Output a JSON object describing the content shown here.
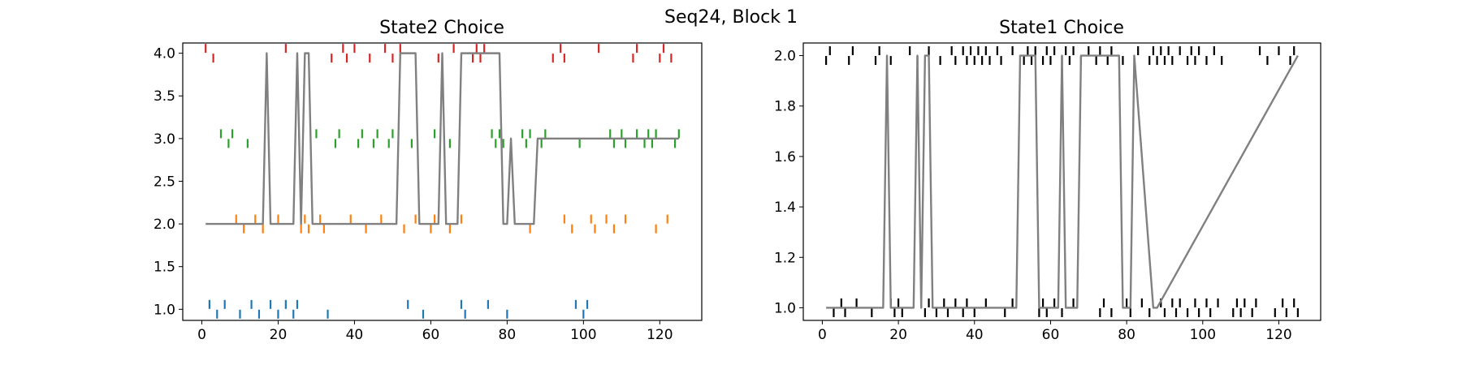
{
  "suptitle": "Seq24, Block 1",
  "chart_data": [
    {
      "type": "line",
      "title": "State2 Choice",
      "xlabel": "",
      "ylabel": "",
      "xlim": [
        -5,
        131
      ],
      "ylim": [
        0.87,
        4.12
      ],
      "xticks": [
        0,
        20,
        40,
        60,
        80,
        100,
        120
      ],
      "yticks": [
        1.0,
        1.5,
        2.0,
        2.5,
        3.0,
        3.5,
        4.0
      ],
      "ytick_labels": [
        "1.0",
        "1.5",
        "2.0",
        "2.5",
        "3.0",
        "3.5",
        "4.0"
      ],
      "line_color": "#808080",
      "line": {
        "x": [
          1,
          16,
          17,
          18,
          24,
          25,
          26,
          27,
          28,
          29,
          51,
          52,
          56,
          57,
          62,
          63,
          64,
          67,
          68,
          78,
          79,
          80,
          81,
          82,
          87,
          88,
          125
        ],
        "y": [
          2,
          2,
          4,
          2,
          2,
          4,
          2,
          4,
          4,
          2,
          2,
          4,
          4,
          2,
          2,
          4,
          2,
          2,
          4,
          4,
          2,
          2,
          3,
          2,
          2,
          3,
          3
        ]
      },
      "series": [
        {
          "name": "",
          "color": "#1f77b4",
          "x": [
            2,
            4,
            6,
            10,
            13,
            15,
            18,
            20,
            22,
            24,
            25,
            33,
            54,
            58,
            68,
            69,
            75,
            80,
            98,
            100,
            101
          ]
        },
        {
          "name": "",
          "color": "#ff7f0e",
          "x": [
            9,
            11,
            14,
            16,
            20,
            26,
            27,
            28,
            31,
            32,
            39,
            43,
            47,
            53,
            56,
            60,
            61,
            65,
            68,
            86,
            95,
            97,
            102,
            103,
            106,
            108,
            111,
            119,
            122
          ]
        },
        {
          "name": "",
          "color": "#2ca02c",
          "x": [
            5,
            7,
            8,
            12,
            30,
            35,
            36,
            41,
            42,
            45,
            46,
            49,
            50,
            55,
            61,
            65,
            76,
            77,
            78,
            79,
            84,
            85,
            86,
            89,
            90,
            99,
            107,
            108,
            110,
            111,
            114,
            116,
            117,
            118,
            119,
            124,
            125
          ]
        },
        {
          "name": "",
          "color": "#d62728",
          "x": [
            1,
            3,
            22,
            34,
            37,
            38,
            40,
            44,
            48,
            50,
            52,
            62,
            66,
            71,
            72,
            73,
            74,
            92,
            94,
            95,
            104,
            113,
            114,
            120,
            121,
            123
          ]
        }
      ]
    },
    {
      "type": "line",
      "title": "State1 Choice",
      "xlabel": "",
      "ylabel": "",
      "xlim": [
        -5,
        131
      ],
      "ylim": [
        0.95,
        2.05
      ],
      "xticks": [
        0,
        20,
        40,
        60,
        80,
        100,
        120
      ],
      "yticks": [
        1.0,
        1.2,
        1.4,
        1.6,
        1.8,
        2.0
      ],
      "ytick_labels": [
        "1.0",
        "1.2",
        "1.4",
        "1.6",
        "1.8",
        "2.0"
      ],
      "line_color": "#808080",
      "line": {
        "x": [
          1,
          16,
          17,
          18,
          24,
          25,
          26,
          27,
          28,
          29,
          51,
          52,
          56,
          57,
          62,
          63,
          64,
          67,
          68,
          78,
          79,
          81,
          82,
          87,
          88,
          125
        ],
        "y": [
          1,
          1,
          2,
          1,
          1,
          2,
          1,
          2,
          2,
          1,
          1,
          2,
          2,
          1,
          1,
          2,
          1,
          1,
          2,
          2,
          1,
          1,
          2,
          1,
          1,
          2
        ]
      },
      "marks_color": "#000000",
      "marks_low_x": [
        3,
        5,
        6,
        9,
        13,
        18,
        19,
        20,
        21,
        26,
        27,
        28,
        30,
        32,
        33,
        35,
        37,
        38,
        40,
        43,
        48,
        50,
        57,
        58,
        59,
        61,
        63,
        66,
        73,
        74,
        76,
        80,
        81,
        84,
        86,
        89,
        90,
        92,
        93,
        94,
        96,
        98,
        99,
        101,
        102,
        104,
        108,
        109,
        110,
        111,
        113,
        114,
        119,
        121,
        122,
        124,
        125
      ],
      "marks_high_x": [
        1,
        2,
        7,
        8,
        14,
        15,
        18,
        23,
        25,
        28,
        31,
        34,
        35,
        37,
        38,
        39,
        40,
        41,
        42,
        43,
        44,
        46,
        47,
        50,
        53,
        54,
        55,
        56,
        58,
        59,
        60,
        61,
        63,
        64,
        65,
        66,
        68,
        70,
        72,
        73,
        75,
        76,
        79,
        83,
        86,
        87,
        88,
        89,
        90,
        91,
        92,
        94,
        96,
        97,
        98,
        99,
        101,
        103,
        105,
        115,
        117,
        120,
        123,
        124
      ]
    }
  ]
}
